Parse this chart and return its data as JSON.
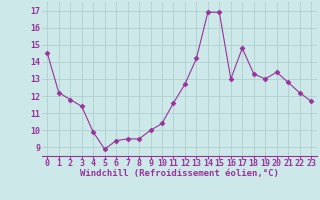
{
  "x": [
    0,
    1,
    2,
    3,
    4,
    5,
    6,
    7,
    8,
    9,
    10,
    11,
    12,
    13,
    14,
    15,
    16,
    17,
    18,
    19,
    20,
    21,
    22,
    23
  ],
  "y": [
    14.5,
    12.2,
    11.8,
    11.4,
    9.9,
    8.9,
    9.4,
    9.5,
    9.5,
    10.0,
    10.4,
    11.6,
    12.7,
    14.2,
    16.9,
    16.9,
    13.0,
    14.8,
    13.3,
    13.0,
    13.4,
    12.8,
    12.2,
    11.7
  ],
  "line_color": "#993399",
  "marker": "D",
  "marker_size": 2.5,
  "line_width": 0.8,
  "bg_color": "#cce8e8",
  "grid_color": "#aacccc",
  "xlabel": "Windchill (Refroidissement éolien,°C)",
  "xlabel_color": "#993399",
  "xlabel_fontsize": 6.5,
  "tick_label_color": "#993399",
  "tick_fontsize": 6.0,
  "ylim": [
    8.5,
    17.5
  ],
  "xlim": [
    -0.5,
    23.5
  ],
  "yticks": [
    9,
    10,
    11,
    12,
    13,
    14,
    15,
    16,
    17
  ],
  "xticks": [
    0,
    1,
    2,
    3,
    4,
    5,
    6,
    7,
    8,
    9,
    10,
    11,
    12,
    13,
    14,
    15,
    16,
    17,
    18,
    19,
    20,
    21,
    22,
    23
  ]
}
